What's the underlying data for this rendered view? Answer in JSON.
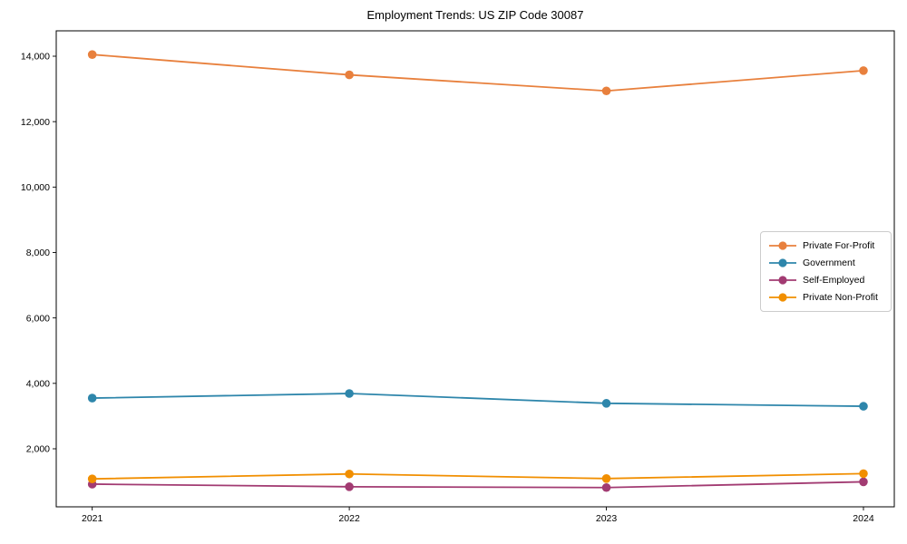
{
  "chart_data": {
    "type": "line",
    "title": "Employment Trends: US ZIP Code 30087",
    "x": [
      2021,
      2022,
      2023,
      2024
    ],
    "xtick_labels": [
      "2021",
      "2022",
      "2023",
      "2024"
    ],
    "yticks": [
      2000,
      4000,
      6000,
      8000,
      10000,
      12000,
      14000
    ],
    "ytick_labels": [
      "2,000",
      "4,000",
      "6,000",
      "8,000",
      "10,000",
      "12,000",
      "14,000"
    ],
    "xlim": [
      2020.86,
      2024.12
    ],
    "ylim": [
      226,
      14776
    ],
    "grid": false,
    "legend_position": "center-right",
    "marker": "circle",
    "series": [
      {
        "name": "Private For-Profit",
        "color": "#e8803d",
        "values": [
          14050,
          13430,
          12940,
          13560
        ]
      },
      {
        "name": "Government",
        "color": "#2e86ab",
        "values": [
          3550,
          3690,
          3390,
          3300
        ]
      },
      {
        "name": "Self-Employed",
        "color": "#a23b72",
        "values": [
          920,
          840,
          815,
          990
        ]
      },
      {
        "name": "Private Non-Profit",
        "color": "#f18f01",
        "values": [
          1080,
          1230,
          1090,
          1240
        ]
      }
    ]
  }
}
